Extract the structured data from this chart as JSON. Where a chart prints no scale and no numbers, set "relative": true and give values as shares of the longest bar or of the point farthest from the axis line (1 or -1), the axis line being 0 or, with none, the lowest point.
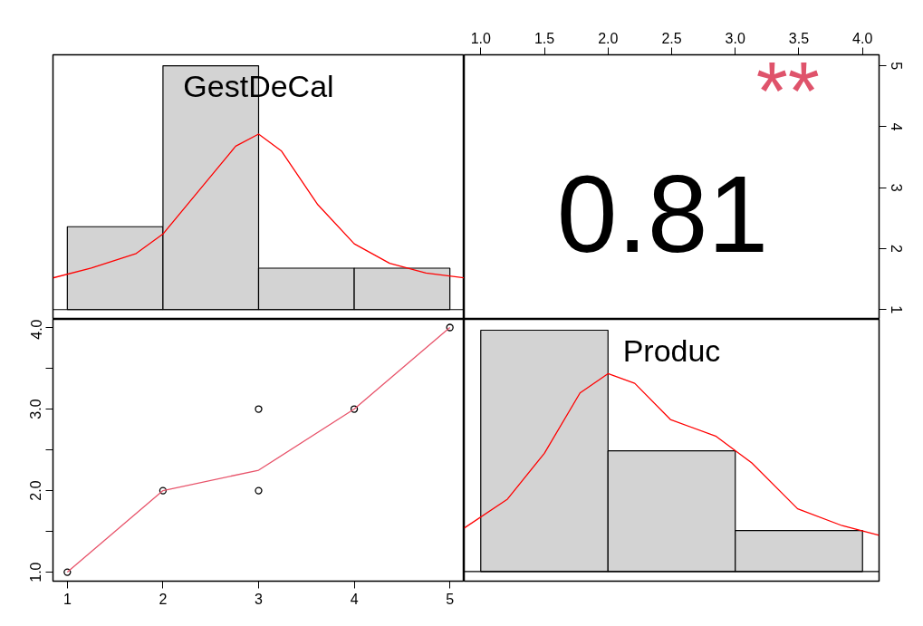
{
  "chart_data": [
    {
      "type": "bar",
      "title": "GestDeCal",
      "relative": true,
      "tick_labels": false,
      "xlim": [
        0.85,
        5.15
      ],
      "xticks": [
        1,
        2,
        3,
        4,
        5
      ],
      "series": [
        {
          "color": "#d3d3d3",
          "x": [
            1.5,
            2.5,
            3.5,
            4.5
          ],
          "values": [
            0.34,
            1,
            0.17,
            0.17
          ]
        },
        {
          "type": "line",
          "color": "#ff0000",
          "x": [
            0.85,
            1.25,
            1.72,
            2.0,
            2.38,
            2.76,
            3.0,
            3.24,
            3.62,
            4.0,
            4.37,
            4.75,
            5.15
          ],
          "values": [
            0.13,
            0.17,
            0.23,
            0.31,
            0.49,
            0.67,
            0.72,
            0.65,
            0.43,
            0.27,
            0.19,
            0.15,
            0.13
          ]
        }
      ]
    },
    {
      "type": "scatter",
      "annotations": [
        "0.81",
        "**"
      ],
      "colors": [
        "#000000",
        "#df536b"
      ],
      "xlim": [
        0.87,
        4.13
      ],
      "xticks": [
        {
          "value": 1,
          "label": "1.0"
        },
        1.5,
        {
          "value": 2,
          "label": "2.0"
        },
        2.5,
        {
          "value": 3,
          "label": "3.0"
        },
        3.5,
        {
          "value": 4,
          "label": "4.0"
        }
      ],
      "ylim": [
        0.84,
        5.18
      ],
      "yticks": [
        1,
        2,
        3,
        4,
        5
      ]
    },
    {
      "type": "scatter",
      "xlim": [
        0.85,
        5.15
      ],
      "xticks": [
        1,
        2,
        3,
        4,
        5
      ],
      "ylim": [
        0.89,
        4.1
      ],
      "yticks": [
        {
          "value": 1,
          "label": "1.0"
        },
        {
          "value": 1.5,
          "label": null
        },
        {
          "value": 2,
          "label": "2.0"
        },
        {
          "value": 2.5,
          "label": null
        },
        {
          "value": 3,
          "label": "3.0"
        },
        {
          "value": 3.5,
          "label": null
        },
        {
          "value": 4,
          "label": "4.0"
        }
      ],
      "series": [
        {
          "marker": "circle",
          "color": "#000000",
          "x": [
            1,
            2,
            3,
            3,
            4,
            5
          ],
          "values": [
            1,
            2,
            3,
            2,
            3,
            4
          ]
        },
        {
          "type": "line",
          "color": "#e8546b",
          "x": [
            1,
            2,
            3,
            4,
            5
          ],
          "values": [
            1,
            2,
            2.25,
            3,
            4
          ]
        }
      ]
    },
    {
      "type": "bar",
      "title": "Produc",
      "relative": true,
      "tick_labels": false,
      "xlim": [
        0.87,
        4.13
      ],
      "xticks": [
        1,
        2,
        3,
        4
      ],
      "series": [
        {
          "color": "#d3d3d3",
          "x": [
            1.5,
            2.5,
            3.5
          ],
          "values": [
            1,
            0.5,
            0.17
          ]
        },
        {
          "type": "line",
          "color": "#ff0000",
          "x": [
            0.87,
            1.21,
            1.5,
            1.78,
            2.0,
            2.21,
            2.49,
            2.85,
            3.13,
            3.49,
            3.84,
            4.13
          ],
          "values": [
            0.18,
            0.3,
            0.49,
            0.74,
            0.82,
            0.78,
            0.63,
            0.56,
            0.45,
            0.26,
            0.19,
            0.15
          ]
        }
      ]
    }
  ]
}
